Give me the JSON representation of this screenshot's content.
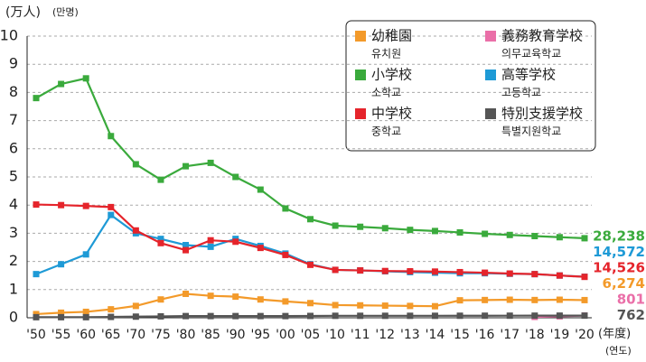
{
  "chart_data": {
    "type": "line",
    "y_label": "(万人)",
    "y_label_sub": "(만명)",
    "x_label": "(年度)",
    "x_label_sub": "(연도)",
    "categories": [
      "'50",
      "'55",
      "'60",
      "'65",
      "'70",
      "'75",
      "'80",
      "'85",
      "'90",
      "'95",
      "'00",
      "'05",
      "'10",
      "'11",
      "'12",
      "'13",
      "'14",
      "'15",
      "'16",
      "'17",
      "'18",
      "'19",
      "'20"
    ],
    "ylim": [
      0,
      10
    ],
    "yticks": [
      0,
      1,
      2,
      3,
      4,
      5,
      6,
      7,
      8,
      9,
      10
    ],
    "grid": true,
    "series": [
      {
        "name": "幼稚園",
        "subname": "유치원",
        "color": "#f39a2a",
        "values": [
          0.13,
          0.18,
          0.21,
          0.3,
          0.42,
          0.65,
          0.85,
          0.78,
          0.75,
          0.65,
          0.58,
          0.52,
          0.45,
          0.44,
          0.43,
          0.42,
          0.41,
          0.62,
          0.63,
          0.64,
          0.63,
          0.64,
          0.6274
        ],
        "value_labels": [
          null,
          null,
          null,
          null,
          null,
          null,
          null,
          null,
          null,
          null,
          null,
          null,
          null,
          null,
          null,
          null,
          null,
          null,
          null,
          null,
          null,
          null,
          "6,274"
        ]
      },
      {
        "name": "義務教育学校",
        "subname": "의무교육학교",
        "color": "#ea6fa8",
        "values": [
          null,
          null,
          null,
          null,
          null,
          null,
          null,
          null,
          null,
          null,
          null,
          null,
          null,
          null,
          null,
          null,
          null,
          null,
          null,
          null,
          0.03,
          0.05,
          0.0801
        ],
        "value_labels": [
          null,
          null,
          null,
          null,
          null,
          null,
          null,
          null,
          null,
          null,
          null,
          null,
          null,
          null,
          null,
          null,
          null,
          null,
          null,
          null,
          null,
          null,
          "801"
        ]
      },
      {
        "name": "小学校",
        "subname": "소학교",
        "color": "#3aaa3c",
        "values": [
          7.8,
          8.3,
          8.5,
          6.45,
          5.45,
          4.9,
          5.38,
          5.5,
          5.0,
          4.55,
          3.88,
          3.5,
          3.27,
          3.23,
          3.18,
          3.12,
          3.08,
          3.03,
          2.98,
          2.94,
          2.9,
          2.86,
          2.8238
        ],
        "value_labels": [
          null,
          null,
          null,
          null,
          null,
          null,
          null,
          null,
          null,
          null,
          null,
          null,
          null,
          null,
          null,
          null,
          null,
          null,
          null,
          null,
          null,
          null,
          "28,238"
        ]
      },
      {
        "name": "高等学校",
        "subname": "고등학교",
        "color": "#1e9ad6",
        "values": [
          1.55,
          1.9,
          2.25,
          3.65,
          3.0,
          2.8,
          2.58,
          2.52,
          2.8,
          2.55,
          2.28,
          1.9,
          1.7,
          1.68,
          1.65,
          1.62,
          1.6,
          1.58,
          1.58,
          1.56,
          1.55,
          1.5,
          1.4572
        ],
        "value_labels": [
          null,
          null,
          null,
          null,
          null,
          null,
          null,
          null,
          null,
          null,
          null,
          null,
          null,
          null,
          null,
          null,
          null,
          null,
          null,
          null,
          null,
          null,
          "14,572"
        ]
      },
      {
        "name": "中学校",
        "subname": "중학교",
        "color": "#e5242b",
        "values": [
          4.02,
          4.0,
          3.97,
          3.93,
          3.1,
          2.65,
          2.4,
          2.75,
          2.7,
          2.48,
          2.23,
          1.88,
          1.7,
          1.68,
          1.66,
          1.65,
          1.64,
          1.62,
          1.6,
          1.57,
          1.55,
          1.5,
          1.4526
        ],
        "value_labels": [
          null,
          null,
          null,
          null,
          null,
          null,
          null,
          null,
          null,
          null,
          null,
          null,
          null,
          null,
          null,
          null,
          null,
          null,
          null,
          null,
          null,
          null,
          "14,526"
        ]
      },
      {
        "name": "特別支援学校",
        "subname": "특별지원학교",
        "color": "#555555",
        "values": [
          0.02,
          0.02,
          0.02,
          0.03,
          0.04,
          0.05,
          0.06,
          0.06,
          0.06,
          0.06,
          0.06,
          0.065,
          0.07,
          0.07,
          0.07,
          0.07,
          0.07,
          0.072,
          0.073,
          0.074,
          0.075,
          0.076,
          0.0762
        ],
        "value_labels": [
          null,
          null,
          null,
          null,
          null,
          null,
          null,
          null,
          null,
          null,
          null,
          null,
          null,
          null,
          null,
          null,
          null,
          null,
          null,
          null,
          null,
          null,
          "762"
        ]
      }
    ]
  }
}
